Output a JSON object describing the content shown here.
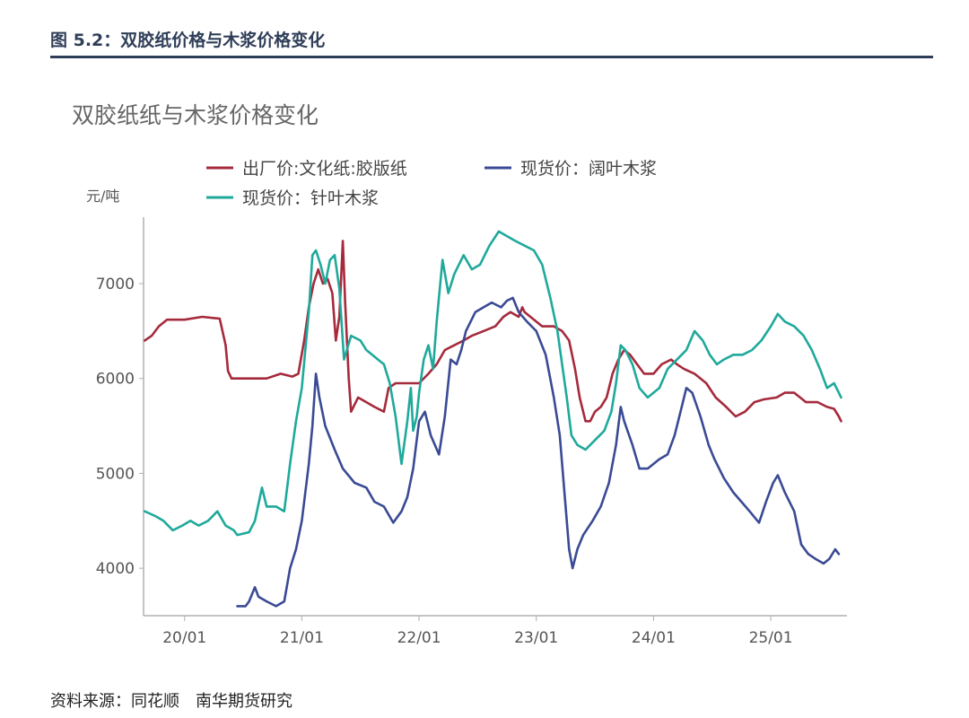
{
  "figure": {
    "caption": "图 5.2：双胶纸价格与木浆价格变化",
    "source": "资料来源：同花顺　南华期货研究"
  },
  "colors": {
    "header": "#2f3e58",
    "axis": "#b0b0b0",
    "tick_text": "#555555",
    "title_text": "#666666"
  },
  "chart_data": {
    "type": "line",
    "title": "双胶纸纸与木浆价格变化",
    "ylabel": "元/吨",
    "xlabel": "",
    "xlim": [
      2019.65,
      2025.65
    ],
    "ylim": [
      3500,
      7700
    ],
    "yticks": [
      4000,
      5000,
      6000,
      7000
    ],
    "xticks": [
      {
        "label": "20/01",
        "x": 2020.0
      },
      {
        "label": "21/01",
        "x": 2021.0
      },
      {
        "label": "22/01",
        "x": 2022.0
      },
      {
        "label": "23/01",
        "x": 2023.0
      },
      {
        "label": "24/01",
        "x": 2024.0
      },
      {
        "label": "25/01",
        "x": 2025.0
      }
    ],
    "legend_position": "top",
    "grid": false,
    "series": [
      {
        "name": "出厂价:文化纸:胶版纸",
        "color": "#a52a3c",
        "points": [
          [
            2019.66,
            6400
          ],
          [
            2019.72,
            6450
          ],
          [
            2019.78,
            6550
          ],
          [
            2019.85,
            6620
          ],
          [
            2020.0,
            6620
          ],
          [
            2020.15,
            6650
          ],
          [
            2020.3,
            6630
          ],
          [
            2020.35,
            6350
          ],
          [
            2020.37,
            6080
          ],
          [
            2020.4,
            6000
          ],
          [
            2020.55,
            6000
          ],
          [
            2020.7,
            6000
          ],
          [
            2020.82,
            6050
          ],
          [
            2020.92,
            6020
          ],
          [
            2020.97,
            6050
          ],
          [
            2021.02,
            6400
          ],
          [
            2021.06,
            6750
          ],
          [
            2021.1,
            7000
          ],
          [
            2021.14,
            7150
          ],
          [
            2021.18,
            7000
          ],
          [
            2021.22,
            7050
          ],
          [
            2021.26,
            6900
          ],
          [
            2021.29,
            6400
          ],
          [
            2021.32,
            6650
          ],
          [
            2021.35,
            7450
          ],
          [
            2021.37,
            6800
          ],
          [
            2021.4,
            6000
          ],
          [
            2021.42,
            5650
          ],
          [
            2021.48,
            5800
          ],
          [
            2021.55,
            5750
          ],
          [
            2021.62,
            5700
          ],
          [
            2021.7,
            5650
          ],
          [
            2021.74,
            5900
          ],
          [
            2021.8,
            5950
          ],
          [
            2021.9,
            5950
          ],
          [
            2022.0,
            5950
          ],
          [
            2022.08,
            6050
          ],
          [
            2022.15,
            6150
          ],
          [
            2022.22,
            6300
          ],
          [
            2022.3,
            6350
          ],
          [
            2022.38,
            6400
          ],
          [
            2022.45,
            6450
          ],
          [
            2022.55,
            6500
          ],
          [
            2022.65,
            6550
          ],
          [
            2022.72,
            6650
          ],
          [
            2022.78,
            6700
          ],
          [
            2022.85,
            6650
          ],
          [
            2022.88,
            6750
          ],
          [
            2022.9,
            6700
          ],
          [
            2022.95,
            6650
          ],
          [
            2023.05,
            6550
          ],
          [
            2023.15,
            6550
          ],
          [
            2023.22,
            6500
          ],
          [
            2023.28,
            6400
          ],
          [
            2023.33,
            6100
          ],
          [
            2023.37,
            5800
          ],
          [
            2023.42,
            5550
          ],
          [
            2023.46,
            5550
          ],
          [
            2023.5,
            5650
          ],
          [
            2023.55,
            5700
          ],
          [
            2023.6,
            5800
          ],
          [
            2023.65,
            6050
          ],
          [
            2023.7,
            6200
          ],
          [
            2023.75,
            6300
          ],
          [
            2023.8,
            6250
          ],
          [
            2023.86,
            6150
          ],
          [
            2023.92,
            6050
          ],
          [
            2024.0,
            6050
          ],
          [
            2024.07,
            6150
          ],
          [
            2024.15,
            6200
          ],
          [
            2024.2,
            6150
          ],
          [
            2024.26,
            6100
          ],
          [
            2024.35,
            6050
          ],
          [
            2024.45,
            5950
          ],
          [
            2024.53,
            5800
          ],
          [
            2024.62,
            5700
          ],
          [
            2024.7,
            5600
          ],
          [
            2024.78,
            5650
          ],
          [
            2024.86,
            5750
          ],
          [
            2024.94,
            5780
          ],
          [
            2025.05,
            5800
          ],
          [
            2025.12,
            5850
          ],
          [
            2025.2,
            5850
          ],
          [
            2025.3,
            5750
          ],
          [
            2025.4,
            5750
          ],
          [
            2025.48,
            5700
          ],
          [
            2025.54,
            5680
          ],
          [
            2025.58,
            5600
          ],
          [
            2025.6,
            5550
          ]
        ]
      },
      {
        "name": "现货价：阔叶木浆",
        "color": "#3a4a94",
        "points": [
          [
            2020.45,
            3600
          ],
          [
            2020.52,
            3600
          ],
          [
            2020.55,
            3650
          ],
          [
            2020.6,
            3800
          ],
          [
            2020.63,
            3700
          ],
          [
            2020.7,
            3650
          ],
          [
            2020.78,
            3600
          ],
          [
            2020.85,
            3650
          ],
          [
            2020.9,
            4000
          ],
          [
            2020.95,
            4200
          ],
          [
            2021.0,
            4500
          ],
          [
            2021.03,
            4800
          ],
          [
            2021.06,
            5100
          ],
          [
            2021.09,
            5500
          ],
          [
            2021.12,
            6050
          ],
          [
            2021.15,
            5800
          ],
          [
            2021.2,
            5500
          ],
          [
            2021.28,
            5250
          ],
          [
            2021.35,
            5050
          ],
          [
            2021.45,
            4900
          ],
          [
            2021.55,
            4850
          ],
          [
            2021.62,
            4700
          ],
          [
            2021.7,
            4650
          ],
          [
            2021.78,
            4480
          ],
          [
            2021.85,
            4600
          ],
          [
            2021.9,
            4750
          ],
          [
            2021.95,
            5050
          ],
          [
            2022.0,
            5550
          ],
          [
            2022.05,
            5650
          ],
          [
            2022.1,
            5400
          ],
          [
            2022.17,
            5200
          ],
          [
            2022.22,
            5600
          ],
          [
            2022.27,
            6200
          ],
          [
            2022.32,
            6150
          ],
          [
            2022.36,
            6300
          ],
          [
            2022.4,
            6500
          ],
          [
            2022.48,
            6700
          ],
          [
            2022.55,
            6750
          ],
          [
            2022.62,
            6800
          ],
          [
            2022.7,
            6750
          ],
          [
            2022.75,
            6820
          ],
          [
            2022.8,
            6850
          ],
          [
            2022.85,
            6700
          ],
          [
            2022.92,
            6600
          ],
          [
            2023.0,
            6500
          ],
          [
            2023.08,
            6250
          ],
          [
            2023.15,
            5800
          ],
          [
            2023.2,
            5400
          ],
          [
            2023.24,
            4800
          ],
          [
            2023.28,
            4200
          ],
          [
            2023.31,
            4000
          ],
          [
            2023.35,
            4200
          ],
          [
            2023.4,
            4350
          ],
          [
            2023.48,
            4500
          ],
          [
            2023.55,
            4650
          ],
          [
            2023.62,
            4900
          ],
          [
            2023.68,
            5300
          ],
          [
            2023.72,
            5700
          ],
          [
            2023.75,
            5550
          ],
          [
            2023.82,
            5300
          ],
          [
            2023.88,
            5050
          ],
          [
            2023.95,
            5050
          ],
          [
            2024.05,
            5150
          ],
          [
            2024.12,
            5200
          ],
          [
            2024.18,
            5400
          ],
          [
            2024.24,
            5700
          ],
          [
            2024.28,
            5900
          ],
          [
            2024.33,
            5850
          ],
          [
            2024.4,
            5600
          ],
          [
            2024.47,
            5300
          ],
          [
            2024.52,
            5150
          ],
          [
            2024.6,
            4950
          ],
          [
            2024.68,
            4800
          ],
          [
            2024.75,
            4700
          ],
          [
            2024.82,
            4600
          ],
          [
            2024.9,
            4480
          ],
          [
            2024.96,
            4700
          ],
          [
            2025.02,
            4900
          ],
          [
            2025.06,
            4980
          ],
          [
            2025.12,
            4800
          ],
          [
            2025.2,
            4600
          ],
          [
            2025.26,
            4250
          ],
          [
            2025.32,
            4150
          ],
          [
            2025.38,
            4100
          ],
          [
            2025.45,
            4050
          ],
          [
            2025.5,
            4100
          ],
          [
            2025.55,
            4200
          ],
          [
            2025.58,
            4150
          ]
        ]
      },
      {
        "name": "现货价：针叶木浆",
        "color": "#1fa99b",
        "points": [
          [
            2019.66,
            4600
          ],
          [
            2019.75,
            4550
          ],
          [
            2019.82,
            4500
          ],
          [
            2019.9,
            4400
          ],
          [
            2019.98,
            4450
          ],
          [
            2020.05,
            4500
          ],
          [
            2020.12,
            4450
          ],
          [
            2020.2,
            4500
          ],
          [
            2020.28,
            4600
          ],
          [
            2020.35,
            4450
          ],
          [
            2020.42,
            4400
          ],
          [
            2020.45,
            4350
          ],
          [
            2020.55,
            4380
          ],
          [
            2020.6,
            4500
          ],
          [
            2020.66,
            4850
          ],
          [
            2020.7,
            4650
          ],
          [
            2020.78,
            4650
          ],
          [
            2020.85,
            4600
          ],
          [
            2020.9,
            5100
          ],
          [
            2020.95,
            5550
          ],
          [
            2021.0,
            5900
          ],
          [
            2021.03,
            6300
          ],
          [
            2021.06,
            6700
          ],
          [
            2021.09,
            7300
          ],
          [
            2021.12,
            7350
          ],
          [
            2021.16,
            7200
          ],
          [
            2021.2,
            7000
          ],
          [
            2021.24,
            7250
          ],
          [
            2021.28,
            7300
          ],
          [
            2021.32,
            6950
          ],
          [
            2021.36,
            6200
          ],
          [
            2021.42,
            6450
          ],
          [
            2021.5,
            6400
          ],
          [
            2021.55,
            6300
          ],
          [
            2021.6,
            6250
          ],
          [
            2021.65,
            6200
          ],
          [
            2021.7,
            6150
          ],
          [
            2021.75,
            5950
          ],
          [
            2021.8,
            5600
          ],
          [
            2021.85,
            5100
          ],
          [
            2021.9,
            5550
          ],
          [
            2021.93,
            5900
          ],
          [
            2021.95,
            5450
          ],
          [
            2021.98,
            5600
          ],
          [
            2022.0,
            5850
          ],
          [
            2022.04,
            6200
          ],
          [
            2022.08,
            6350
          ],
          [
            2022.12,
            6100
          ],
          [
            2022.15,
            6600
          ],
          [
            2022.2,
            7250
          ],
          [
            2022.25,
            6900
          ],
          [
            2022.3,
            7100
          ],
          [
            2022.38,
            7300
          ],
          [
            2022.45,
            7150
          ],
          [
            2022.52,
            7200
          ],
          [
            2022.6,
            7400
          ],
          [
            2022.68,
            7550
          ],
          [
            2022.75,
            7500
          ],
          [
            2022.82,
            7450
          ],
          [
            2022.9,
            7400
          ],
          [
            2022.98,
            7350
          ],
          [
            2023.05,
            7200
          ],
          [
            2023.12,
            6850
          ],
          [
            2023.18,
            6500
          ],
          [
            2023.22,
            6150
          ],
          [
            2023.26,
            5800
          ],
          [
            2023.3,
            5400
          ],
          [
            2023.35,
            5300
          ],
          [
            2023.42,
            5250
          ],
          [
            2023.5,
            5350
          ],
          [
            2023.58,
            5450
          ],
          [
            2023.64,
            5650
          ],
          [
            2023.68,
            5950
          ],
          [
            2023.72,
            6350
          ],
          [
            2023.76,
            6300
          ],
          [
            2023.82,
            6150
          ],
          [
            2023.88,
            5900
          ],
          [
            2023.95,
            5800
          ],
          [
            2024.05,
            5900
          ],
          [
            2024.12,
            6100
          ],
          [
            2024.2,
            6200
          ],
          [
            2024.28,
            6300
          ],
          [
            2024.35,
            6500
          ],
          [
            2024.42,
            6400
          ],
          [
            2024.48,
            6250
          ],
          [
            2024.54,
            6150
          ],
          [
            2024.6,
            6200
          ],
          [
            2024.68,
            6250
          ],
          [
            2024.76,
            6250
          ],
          [
            2024.84,
            6300
          ],
          [
            2024.92,
            6400
          ],
          [
            2025.0,
            6550
          ],
          [
            2025.06,
            6680
          ],
          [
            2025.12,
            6600
          ],
          [
            2025.2,
            6550
          ],
          [
            2025.28,
            6450
          ],
          [
            2025.35,
            6300
          ],
          [
            2025.42,
            6100
          ],
          [
            2025.48,
            5900
          ],
          [
            2025.54,
            5950
          ],
          [
            2025.58,
            5850
          ],
          [
            2025.6,
            5800
          ]
        ]
      }
    ]
  }
}
